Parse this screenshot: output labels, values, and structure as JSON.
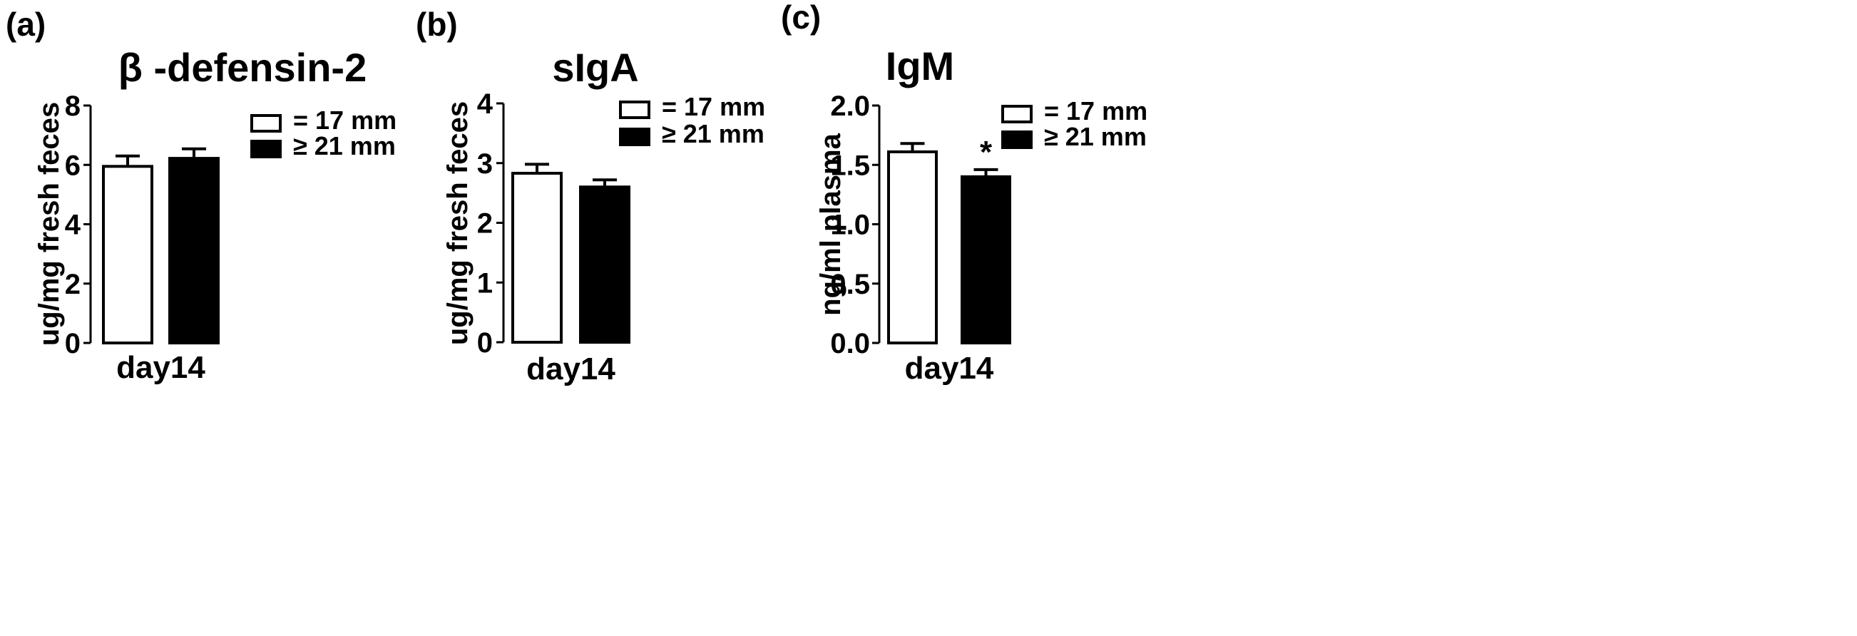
{
  "chart_data": [
    {
      "type": "bar",
      "panel_label": "(a)",
      "title": "β -defensin-2",
      "ylabel": "ug/mg fresh feces",
      "xlabel": "",
      "categories": [
        "day14"
      ],
      "ylim": [
        0,
        8
      ],
      "yticks": [
        "0",
        "2",
        "4",
        "6",
        "8"
      ],
      "legend_position": "top-right",
      "series": [
        {
          "name": "= 17 mm",
          "values": [
            5.95
          ],
          "errors": [
            0.35
          ],
          "fill": "#ffffff"
        },
        {
          "name": "≥ 21 mm",
          "values": [
            6.22
          ],
          "errors": [
            0.32
          ],
          "fill": "#000000"
        }
      ],
      "annotations": []
    },
    {
      "type": "bar",
      "panel_label": "(b)",
      "title": "sIgA",
      "ylabel": "ug/mg fresh feces",
      "xlabel": "",
      "categories": [
        "day14"
      ],
      "ylim": [
        0,
        4
      ],
      "yticks": [
        "0",
        "1",
        "2",
        "3",
        "4"
      ],
      "legend_position": "top-right",
      "series": [
        {
          "name": "= 17 mm",
          "values": [
            2.83
          ],
          "errors": [
            0.15
          ],
          "fill": "#ffffff"
        },
        {
          "name": "≥ 21 mm",
          "values": [
            2.6
          ],
          "errors": [
            0.12
          ],
          "fill": "#000000"
        }
      ],
      "annotations": []
    },
    {
      "type": "bar",
      "panel_label": "(c)",
      "title": "IgM",
      "ylabel": "ng/ml plasma",
      "xlabel": "",
      "categories": [
        "day14"
      ],
      "ylim": [
        0,
        2
      ],
      "yticks": [
        "0.0",
        "0.5",
        "1.0",
        "1.5",
        "2.0"
      ],
      "legend_position": "top-right",
      "series": [
        {
          "name": "= 17 mm",
          "values": [
            1.61
          ],
          "errors": [
            0.07
          ],
          "fill": "#ffffff"
        },
        {
          "name": "≥ 21 mm",
          "values": [
            1.4
          ],
          "errors": [
            0.06
          ],
          "fill": "#000000"
        }
      ],
      "annotations": [
        {
          "text": "*",
          "series_index": 1
        }
      ]
    }
  ]
}
